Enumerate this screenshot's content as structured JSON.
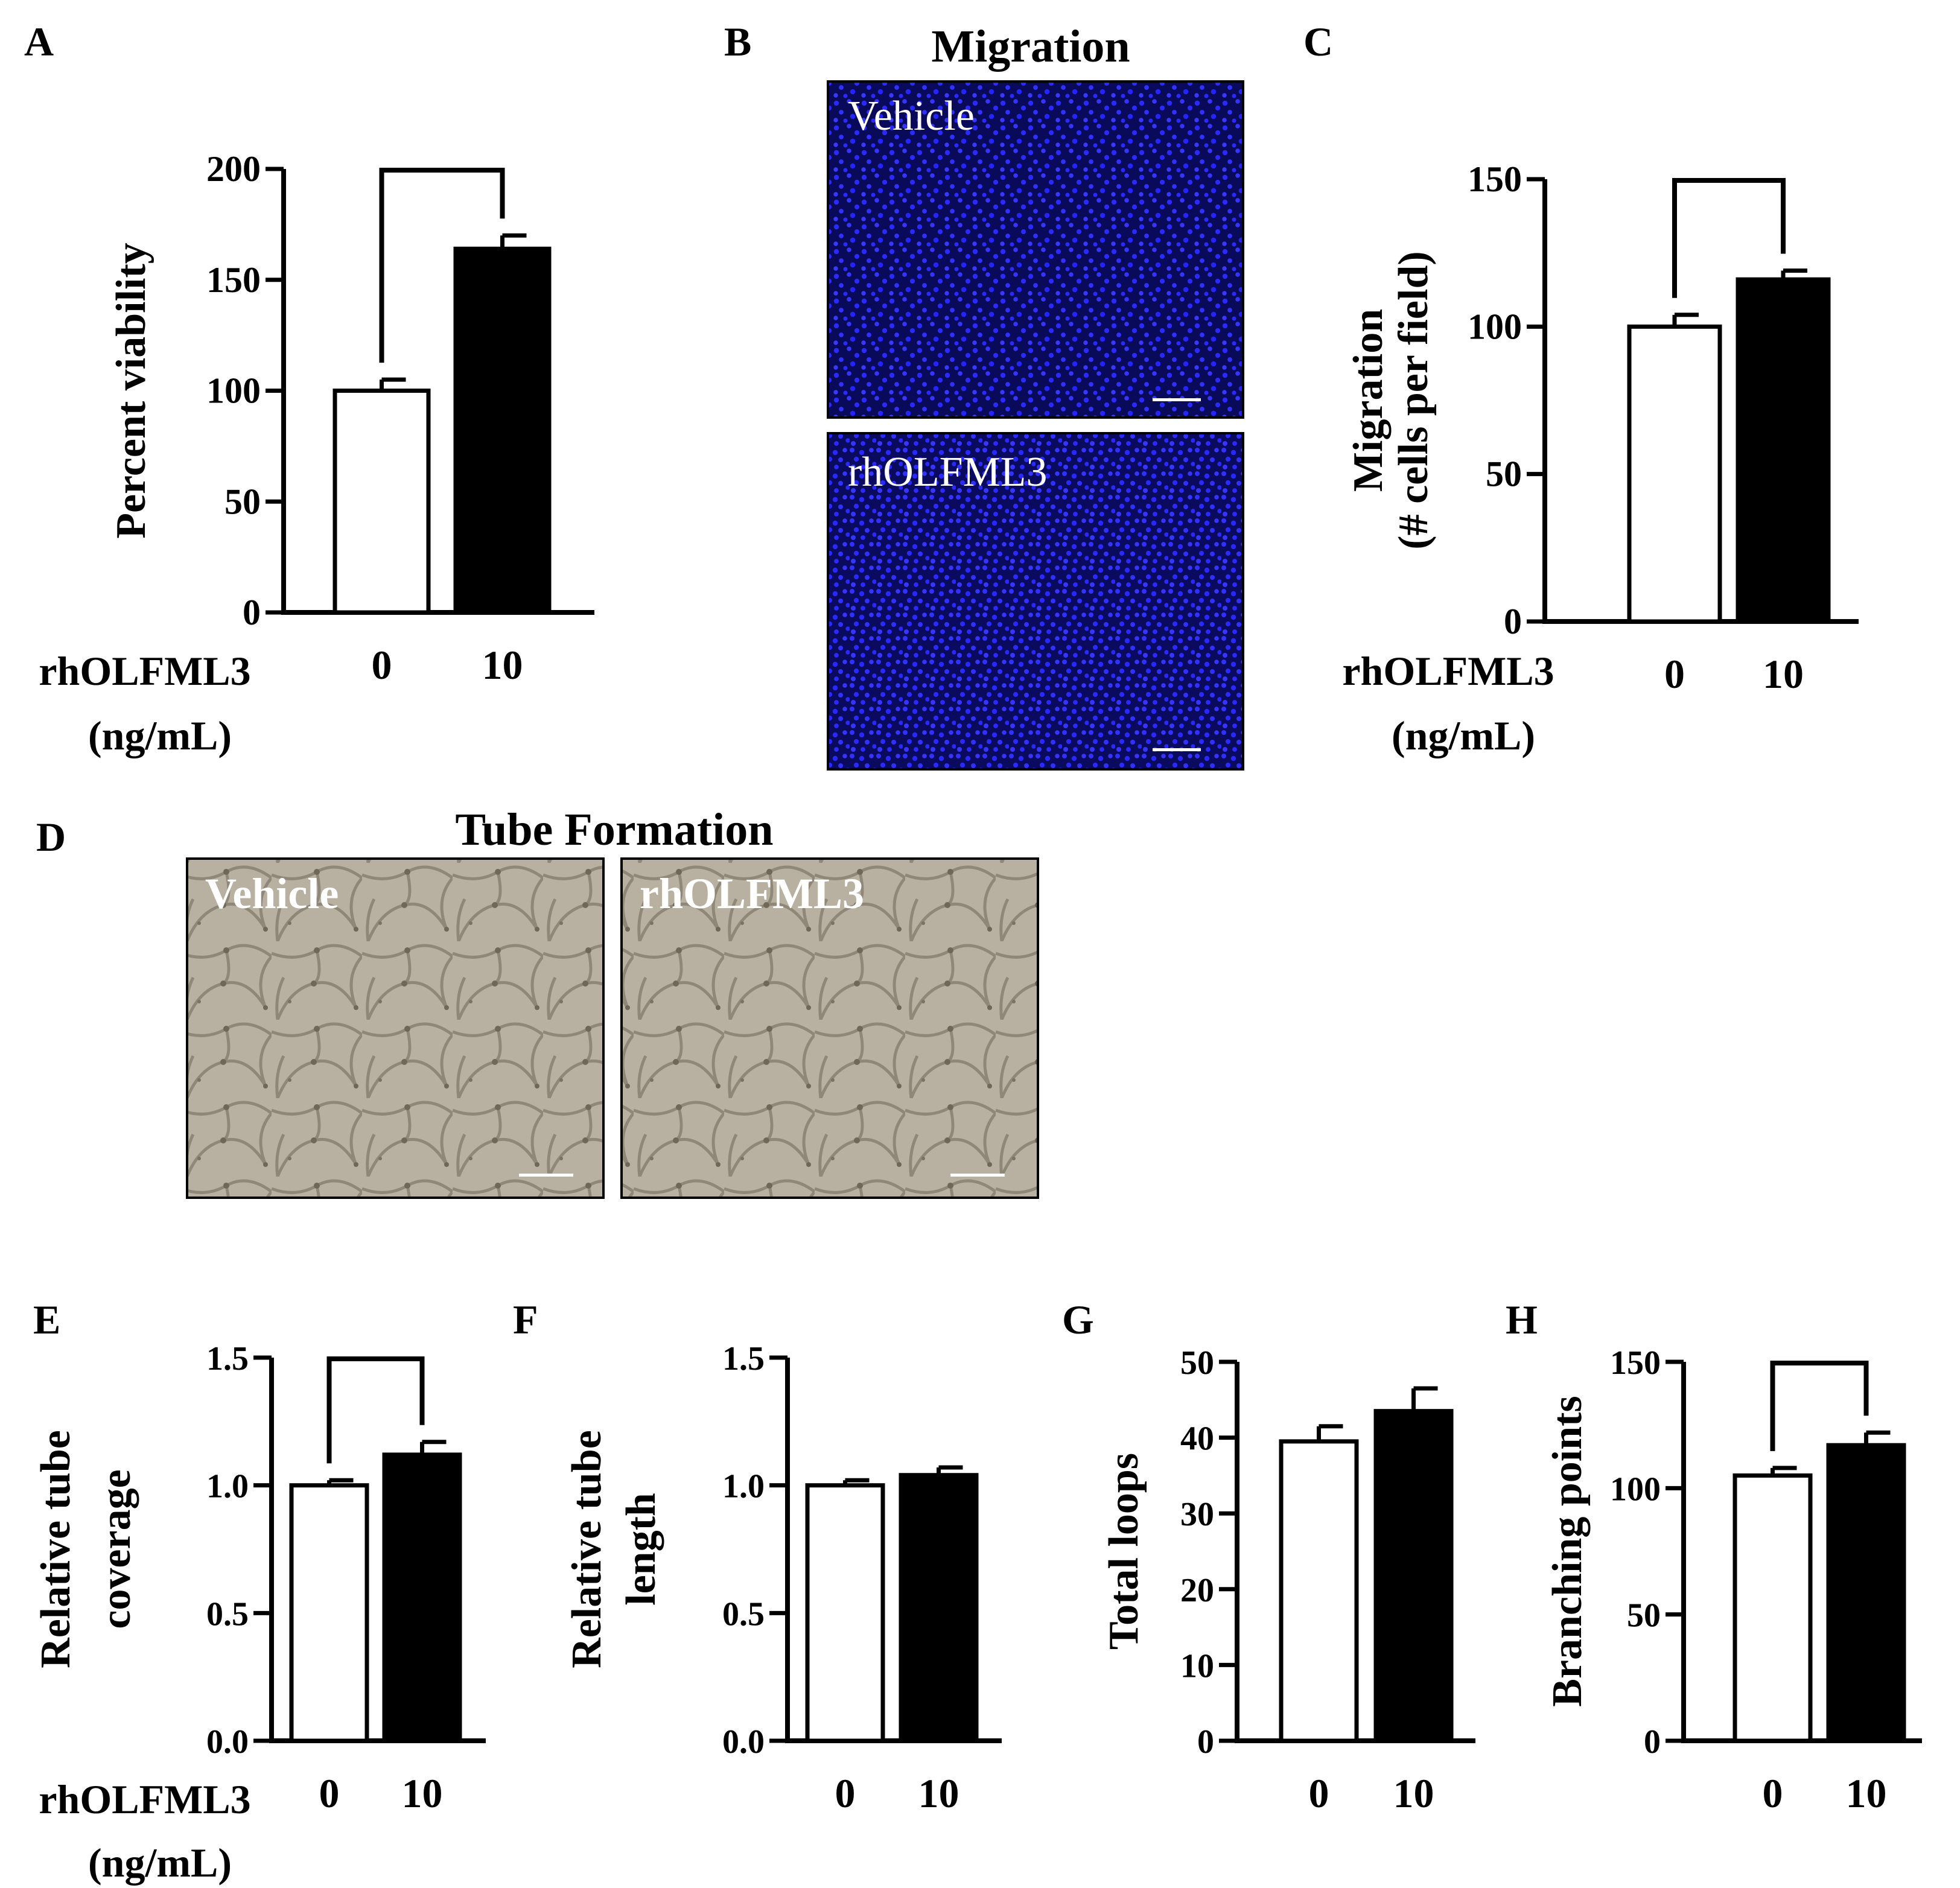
{
  "panel_letters": {
    "A": "A",
    "B": "B",
    "C": "C",
    "D": "D",
    "E": "E",
    "F": "F",
    "G": "G",
    "H": "H"
  },
  "x_label_line1": "rhOLFML3",
  "x_label_line2": "(ng/mL)",
  "migration_title": "Migration",
  "migration_labels": {
    "top": "Vehicle",
    "bottom": "rhOLFML3"
  },
  "tube_title": "Tube Formation",
  "tube_labels": {
    "left": "Vehicle",
    "right": "rhOLFML3"
  },
  "colors": {
    "bar_control": "#ffffff",
    "bar_treated": "#000000",
    "stain_bg": "#0a0a5a",
    "stain_nuclei": "#2a2aff",
    "brightfield": "#b8b0a0"
  },
  "chart_data": [
    {
      "id": "A",
      "type": "bar",
      "categories": [
        "0",
        "10"
      ],
      "values": [
        100,
        164
      ],
      "errors": [
        5,
        6
      ],
      "ylabel": "Percent viability",
      "ylim": [
        0,
        200
      ],
      "yticks": [
        "0",
        "50",
        "100",
        "150",
        "200"
      ],
      "significance_bracket": true
    },
    {
      "id": "C",
      "type": "bar",
      "categories": [
        "0",
        "10"
      ],
      "values": [
        100,
        116
      ],
      "errors": [
        4,
        3
      ],
      "ylabel": "Migration",
      "ylabel2": "(# cells per field)",
      "ylim": [
        0,
        150
      ],
      "yticks": [
        "0",
        "50",
        "100",
        "150"
      ],
      "significance_bracket": true
    },
    {
      "id": "E",
      "type": "bar",
      "categories": [
        "0",
        "10"
      ],
      "values": [
        1.0,
        1.12
      ],
      "errors": [
        0.02,
        0.05
      ],
      "ylabel": "Relative tube",
      "ylabel2": "coverage",
      "ylim": [
        0,
        1.5
      ],
      "yticks": [
        "0.0",
        "0.5",
        "1.0",
        "1.5"
      ],
      "significance_bracket": true
    },
    {
      "id": "F",
      "type": "bar",
      "categories": [
        "0",
        "10"
      ],
      "values": [
        1.0,
        1.04
      ],
      "errors": [
        0.02,
        0.03
      ],
      "ylabel": "Relative tube",
      "ylabel2": "length",
      "ylim": [
        0,
        1.5
      ],
      "yticks": [
        "0.0",
        "0.5",
        "1.0",
        "1.5"
      ],
      "significance_bracket": false
    },
    {
      "id": "G",
      "type": "bar",
      "categories": [
        "0",
        "10"
      ],
      "values": [
        39.5,
        43.5
      ],
      "errors": [
        2,
        3
      ],
      "ylabel": "Total loops",
      "ylim": [
        0,
        50
      ],
      "yticks": [
        "0",
        "10",
        "20",
        "30",
        "40",
        "50"
      ],
      "significance_bracket": false
    },
    {
      "id": "H",
      "type": "bar",
      "categories": [
        "0",
        "10"
      ],
      "values": [
        105,
        117
      ],
      "errors": [
        3,
        5
      ],
      "ylabel": "Branching points",
      "ylim": [
        0,
        150
      ],
      "yticks": [
        "0",
        "50",
        "100",
        "150"
      ],
      "significance_bracket": true
    }
  ]
}
